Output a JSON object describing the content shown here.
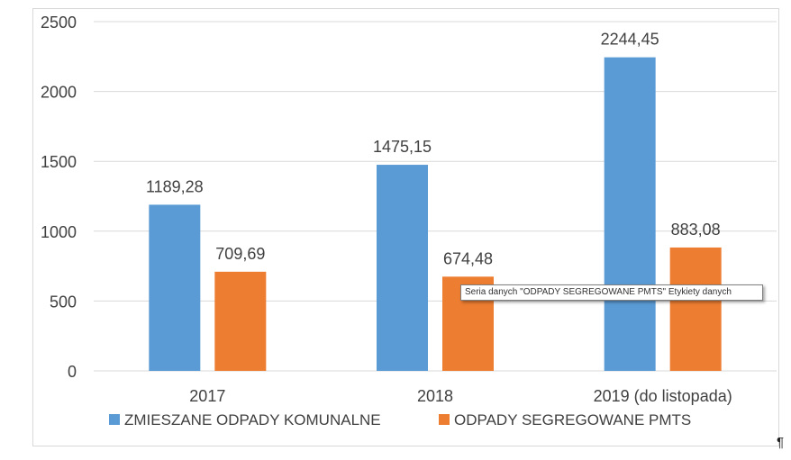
{
  "chart_data": {
    "type": "bar",
    "categories": [
      "2017",
      "2018",
      "2019 (do listopada)"
    ],
    "series": [
      {
        "name": "ZMIESZANE ODPADY KOMUNALNE",
        "color": "#5b9bd5",
        "values": [
          1189.28,
          1475.15,
          2244.45
        ],
        "labels": [
          "1189,28",
          "1475,15",
          "2244,45"
        ]
      },
      {
        "name": "ODPADY SEGREGOWANE PMTS",
        "color": "#ed7d31",
        "values": [
          709.69,
          674.48,
          883.08
        ],
        "labels": [
          "709,69",
          "674,48",
          "883,08"
        ]
      }
    ],
    "yticks": [
      0,
      500,
      1000,
      1500,
      2000,
      2500
    ],
    "ylim": [
      0,
      2500
    ],
    "grid": true,
    "legend_position": "bottom",
    "tooltip": "Seria danych \"ODPADY SEGREGOWANE PMTS\" Etykiety danych"
  },
  "pilcrow": "¶"
}
